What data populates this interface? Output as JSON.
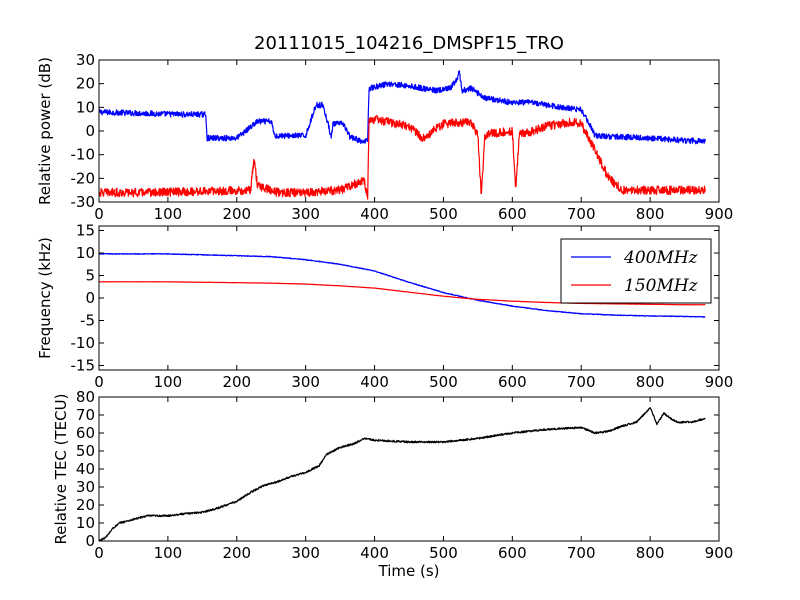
{
  "title": "20111015_104216_DMSPF15_TRO",
  "chart_data": [
    {
      "type": "line",
      "ylabel": "Relative power (dB)",
      "xlim": [
        0,
        900
      ],
      "ylim": [
        -30,
        30
      ],
      "xticks": [
        "0",
        "100",
        "200",
        "300",
        "400",
        "500",
        "600",
        "700",
        "800",
        "900"
      ],
      "yticks": [
        "-30",
        "-20",
        "-10",
        "0",
        "10",
        "20",
        "30"
      ],
      "series": [
        {
          "color": "#0000ff",
          "x": [
            0,
            60,
            120,
            155,
            157,
            200,
            230,
            250,
            255,
            300,
            315,
            325,
            337,
            340,
            355,
            365,
            370,
            385,
            390,
            392,
            420,
            450,
            490,
            510,
            520,
            523,
            527,
            540,
            560,
            600,
            630,
            670,
            700,
            712,
            720,
            760,
            800,
            850,
            880
          ],
          "y": [
            8,
            7.5,
            7,
            7,
            -3,
            -3,
            4,
            4,
            -2,
            -2,
            11,
            11,
            -2,
            3,
            3,
            -3,
            -3,
            -5,
            -3,
            18,
            20,
            19,
            17,
            18,
            22,
            25,
            17,
            18,
            14,
            12,
            12,
            10,
            9,
            3,
            -2,
            -2.5,
            -3,
            -4,
            -4.5
          ],
          "noise": 1.2
        },
        {
          "color": "#ff0000",
          "x": [
            0,
            80,
            150,
            220,
            225,
            230,
            260,
            300,
            350,
            375,
            385,
            390,
            392,
            400,
            450,
            470,
            480,
            500,
            540,
            550,
            555,
            560,
            570,
            600,
            605,
            610,
            620,
            650,
            690,
            700,
            720,
            740,
            760,
            800,
            850,
            880
          ],
          "y": [
            -26,
            -26,
            -25.5,
            -25,
            -12,
            -23,
            -26,
            -26,
            -25,
            -22,
            -21,
            -28,
            4,
            5,
            2,
            -3,
            -1,
            3,
            4,
            -2,
            -28,
            -2,
            -1,
            0,
            -25,
            -1,
            -1,
            2,
            4,
            3,
            -8,
            -20,
            -25,
            -25,
            -25,
            -25
          ],
          "noise": 1.8
        }
      ]
    },
    {
      "type": "line",
      "ylabel": "Frequency (kHz)",
      "xlim": [
        0,
        900
      ],
      "ylim": [
        -16,
        16
      ],
      "xticks": [
        "0",
        "100",
        "200",
        "300",
        "400",
        "500",
        "600",
        "700",
        "800",
        "900"
      ],
      "yticks": [
        "-15",
        "-10",
        "-5",
        "0",
        "5",
        "10",
        "15"
      ],
      "legend": {
        "position": "top-right"
      },
      "series": [
        {
          "name": "400MHz",
          "color": "#0000ff",
          "x": [
            0,
            100,
            150,
            200,
            250,
            300,
            350,
            400,
            450,
            500,
            550,
            600,
            650,
            700,
            750,
            800,
            850,
            880
          ],
          "y": [
            9.8,
            9.8,
            9.6,
            9.4,
            9.2,
            8.5,
            7.5,
            6,
            3.5,
            1.2,
            -0.5,
            -1.8,
            -2.8,
            -3.5,
            -3.8,
            -4,
            -4.1,
            -4.2
          ],
          "noise": 0.08
        },
        {
          "name": "150MHz",
          "color": "#ff0000",
          "x": [
            0,
            100,
            150,
            200,
            250,
            300,
            350,
            400,
            450,
            500,
            550,
            600,
            650,
            700,
            750,
            800,
            850,
            880
          ],
          "y": [
            3.6,
            3.6,
            3.5,
            3.4,
            3.3,
            3.1,
            2.7,
            2.2,
            1.3,
            0.4,
            -0.3,
            -0.7,
            -1,
            -1.2,
            -1.3,
            -1.4,
            -1.5,
            -1.5
          ],
          "noise": 0.03
        }
      ]
    },
    {
      "type": "line",
      "ylabel": "Relative TEC (TECU)",
      "xlabel": "Time (s)",
      "xlim": [
        0,
        900
      ],
      "ylim": [
        0,
        80
      ],
      "xticks": [
        "0",
        "100",
        "200",
        "300",
        "400",
        "500",
        "600",
        "700",
        "800",
        "900"
      ],
      "yticks": [
        "0",
        "10",
        "20",
        "30",
        "40",
        "50",
        "60",
        "70",
        "80"
      ],
      "series": [
        {
          "color": "#000000",
          "x": [
            0,
            10,
            20,
            30,
            50,
            70,
            100,
            120,
            150,
            170,
            200,
            220,
            240,
            260,
            280,
            300,
            320,
            330,
            350,
            370,
            380,
            385,
            400,
            450,
            500,
            550,
            600,
            650,
            700,
            720,
            740,
            760,
            780,
            790,
            800,
            810,
            820,
            830,
            840,
            860,
            880
          ],
          "y": [
            0,
            2,
            7,
            10,
            12,
            14,
            14,
            15,
            16,
            18,
            22,
            27,
            31,
            33,
            36,
            38,
            42,
            48,
            52,
            54,
            56,
            57,
            56,
            55,
            55,
            57,
            60,
            62,
            63,
            60,
            61,
            64,
            66,
            70,
            74,
            65,
            71,
            68,
            66,
            66,
            68
          ],
          "noise": 0.5
        }
      ]
    }
  ]
}
